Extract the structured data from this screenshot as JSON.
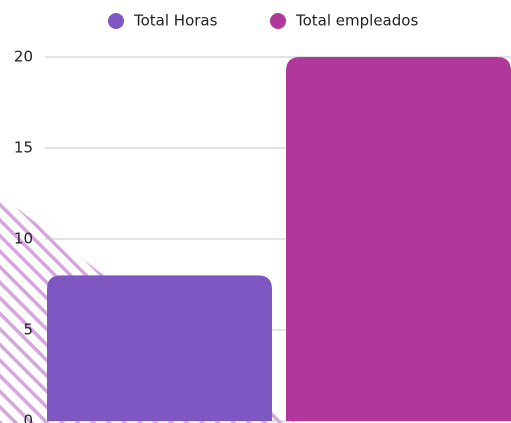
{
  "chart_data": {
    "type": "bar",
    "categories": [
      null
    ],
    "series": [
      {
        "name": "Total Horas",
        "color": "#7e57c2",
        "values": [
          8
        ]
      },
      {
        "name": "Total empleados",
        "color": "#b0389a",
        "values": [
          20
        ]
      }
    ],
    "ylim": [
      0,
      20
    ],
    "yticks": [
      0,
      5,
      10,
      15,
      20
    ],
    "grid": true,
    "legend": "top"
  }
}
